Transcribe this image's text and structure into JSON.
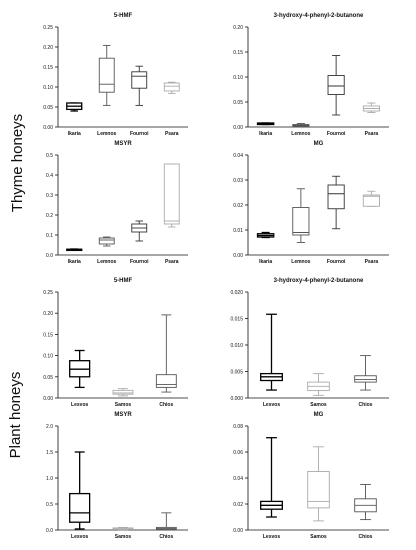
{
  "groups": {
    "thyme": "Thyme honeys",
    "plant": "Plant honeys"
  },
  "chart_data": [
    {
      "type": "box",
      "panel_id": "thyme-5hmf",
      "title": "5-HMF",
      "categories": [
        "Ikaria",
        "Lemnos",
        "Fournoi",
        "Psara"
      ],
      "ylim": [
        0,
        0.25
      ],
      "yticks": [
        0,
        0.05,
        0.1,
        0.15,
        0.2,
        0.25
      ],
      "tick_labels": [
        "0.00",
        "0.05",
        "0.10",
        "0.15",
        "0.20",
        "0.25"
      ],
      "box_colors": [
        "#000000",
        "#555555",
        "#333333",
        "#aaaaaa"
      ],
      "boxes": [
        {
          "min": 0.04,
          "q1": 0.044,
          "median": 0.052,
          "q3": 0.06,
          "max": 0.06
        },
        {
          "min": 0.054,
          "q1": 0.087,
          "median": 0.107,
          "q3": 0.172,
          "max": 0.204
        },
        {
          "min": 0.054,
          "q1": 0.097,
          "median": 0.127,
          "q3": 0.138,
          "max": 0.152
        },
        {
          "min": 0.084,
          "q1": 0.09,
          "median": 0.102,
          "q3": 0.11,
          "max": 0.112
        }
      ]
    },
    {
      "type": "box",
      "panel_id": "thyme-hpb",
      "title": "3-hydroxy-4-phenyl-2-butanone",
      "categories": [
        "Ikaria",
        "Lemnos",
        "Fournoi",
        "Psara"
      ],
      "ylim": [
        0,
        0.2
      ],
      "yticks": [
        0,
        0.05,
        0.1,
        0.15,
        0.2
      ],
      "tick_labels": [
        "0.00",
        "0.05",
        "0.10",
        "0.15",
        "0.20"
      ],
      "box_colors": [
        "#000000",
        "#555555",
        "#333333",
        "#aaaaaa"
      ],
      "boxes": [
        {
          "min": 0.005,
          "q1": 0.005,
          "median": 0.007,
          "q3": 0.008,
          "max": 0.008
        },
        {
          "min": 0.001,
          "q1": 0.002,
          "median": 0.003,
          "q3": 0.005,
          "max": 0.007
        },
        {
          "min": 0.024,
          "q1": 0.065,
          "median": 0.082,
          "q3": 0.103,
          "max": 0.143
        },
        {
          "min": 0.029,
          "q1": 0.032,
          "median": 0.037,
          "q3": 0.042,
          "max": 0.048
        }
      ]
    },
    {
      "type": "box",
      "panel_id": "thyme-msyr",
      "title": "MSYR",
      "categories": [
        "Ikaria",
        "Lemnos",
        "Fournoi",
        "Psara"
      ],
      "ylim": [
        0,
        0.5
      ],
      "yticks": [
        0,
        0.1,
        0.2,
        0.3,
        0.4,
        0.5
      ],
      "tick_labels": [
        "0.0",
        "0.1",
        "0.2",
        "0.3",
        "0.4",
        "0.5"
      ],
      "box_colors": [
        "#000000",
        "#555555",
        "#333333",
        "#aaaaaa"
      ],
      "boxes": [
        {
          "min": 0.024,
          "q1": 0.025,
          "median": 0.027,
          "q3": 0.029,
          "max": 0.03
        },
        {
          "min": 0.045,
          "q1": 0.055,
          "median": 0.075,
          "q3": 0.085,
          "max": 0.09
        },
        {
          "min": 0.07,
          "q1": 0.115,
          "median": 0.135,
          "q3": 0.155,
          "max": 0.17
        },
        {
          "min": 0.14,
          "q1": 0.155,
          "median": 0.17,
          "q3": 0.455,
          "max": 0.455
        }
      ]
    },
    {
      "type": "box",
      "panel_id": "thyme-mg",
      "title": "MG",
      "categories": [
        "Ikaria",
        "Lemnos",
        "Fournoi",
        "Psara"
      ],
      "ylim": [
        0,
        0.04
      ],
      "yticks": [
        0,
        0.01,
        0.02,
        0.03,
        0.04
      ],
      "tick_labels": [
        "0.00",
        "0.01",
        "0.02",
        "0.03",
        "0.04"
      ],
      "box_colors": [
        "#000000",
        "#555555",
        "#333333",
        "#aaaaaa"
      ],
      "boxes": [
        {
          "min": 0.007,
          "q1": 0.0072,
          "median": 0.0078,
          "q3": 0.0085,
          "max": 0.009
        },
        {
          "min": 0.005,
          "q1": 0.008,
          "median": 0.009,
          "q3": 0.019,
          "max": 0.0265
        },
        {
          "min": 0.0105,
          "q1": 0.0185,
          "median": 0.0245,
          "q3": 0.028,
          "max": 0.0315
        },
        {
          "min": 0.0195,
          "q1": 0.0195,
          "median": 0.0235,
          "q3": 0.024,
          "max": 0.0255
        }
      ]
    },
    {
      "type": "box",
      "panel_id": "plant-5hmf",
      "title": "5-HMF",
      "categories": [
        "Lesvos",
        "Samos",
        "Chios"
      ],
      "ylim": [
        0,
        0.25
      ],
      "yticks": [
        0,
        0.05,
        0.1,
        0.15,
        0.2,
        0.25
      ],
      "tick_labels": [
        "0.00",
        "0.05",
        "0.10",
        "0.15",
        "0.20",
        "0.25"
      ],
      "box_colors": [
        "#000000",
        "#aaaaaa",
        "#555555"
      ],
      "boxes": [
        {
          "min": 0.025,
          "q1": 0.05,
          "median": 0.068,
          "q3": 0.088,
          "max": 0.112
        },
        {
          "min": 0.005,
          "q1": 0.009,
          "median": 0.012,
          "q3": 0.018,
          "max": 0.022
        },
        {
          "min": 0.014,
          "q1": 0.025,
          "median": 0.032,
          "q3": 0.055,
          "max": 0.196
        }
      ]
    },
    {
      "type": "box",
      "panel_id": "plant-hpb",
      "title": "3-hydroxy-4-phenyl-2-butanone",
      "categories": [
        "Lesvos",
        "Samos",
        "Chios"
      ],
      "ylim": [
        0,
        0.02
      ],
      "yticks": [
        0,
        0.005,
        0.01,
        0.015,
        0.02
      ],
      "tick_labels": [
        "0.000",
        "0.005",
        "0.010",
        "0.015",
        "0.020"
      ],
      "box_colors": [
        "#000000",
        "#aaaaaa",
        "#555555"
      ],
      "boxes": [
        {
          "min": 0.0015,
          "q1": 0.0033,
          "median": 0.004,
          "q3": 0.0046,
          "max": 0.0158
        },
        {
          "min": 0.0005,
          "q1": 0.0014,
          "median": 0.0022,
          "q3": 0.003,
          "max": 0.0046
        },
        {
          "min": 0.0015,
          "q1": 0.003,
          "median": 0.0035,
          "q3": 0.0042,
          "max": 0.008
        }
      ]
    },
    {
      "type": "box",
      "panel_id": "plant-msyr",
      "title": "MSYR",
      "categories": [
        "Lesvos",
        "Samos",
        "Chios"
      ],
      "ylim": [
        0,
        2.0
      ],
      "yticks": [
        0,
        0.5,
        1.0,
        1.5,
        2.0
      ],
      "tick_labels": [
        "0.0",
        "0.5",
        "1.0",
        "1.5",
        "2.0"
      ],
      "box_colors": [
        "#000000",
        "#aaaaaa",
        "#555555"
      ],
      "boxes": [
        {
          "min": 0.02,
          "q1": 0.15,
          "median": 0.33,
          "q3": 0.7,
          "max": 1.5
        },
        {
          "min": 0.005,
          "q1": 0.01,
          "median": 0.02,
          "q3": 0.04,
          "max": 0.05
        },
        {
          "min": 0.002,
          "q1": 0.01,
          "median": 0.03,
          "q3": 0.05,
          "max": 0.33
        }
      ]
    },
    {
      "type": "box",
      "panel_id": "plant-mg",
      "title": "MG",
      "categories": [
        "Lesvos",
        "Samos",
        "Chios"
      ],
      "ylim": [
        0,
        0.08
      ],
      "yticks": [
        0,
        0.02,
        0.04,
        0.06,
        0.08
      ],
      "tick_labels": [
        "0.00",
        "0.02",
        "0.04",
        "0.06",
        "0.08"
      ],
      "box_colors": [
        "#000000",
        "#aaaaaa",
        "#555555"
      ],
      "boxes": [
        {
          "min": 0.01,
          "q1": 0.016,
          "median": 0.019,
          "q3": 0.022,
          "max": 0.071
        },
        {
          "min": 0.007,
          "q1": 0.017,
          "median": 0.022,
          "q3": 0.045,
          "max": 0.064
        },
        {
          "min": 0.008,
          "q1": 0.014,
          "median": 0.019,
          "q3": 0.024,
          "max": 0.035
        }
      ]
    }
  ]
}
